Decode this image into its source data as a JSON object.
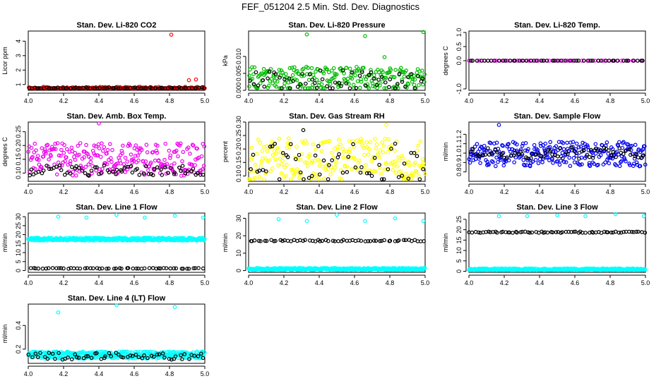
{
  "page_title": "FEF_051204  2.5 Min. Std. Dev. Diagnostics",
  "chart_data": [
    {
      "type": "scatter",
      "title": "Stan. Dev. Li-820 CO2",
      "ylabel": "Licor ppm",
      "xlabel": "",
      "xlim": [
        4.0,
        5.0
      ],
      "ylim": [
        0.6,
        4.7
      ],
      "xticks": [
        4.0,
        4.2,
        4.4,
        4.6,
        4.8,
        5.0
      ],
      "yticks": [
        1,
        2,
        3,
        4
      ],
      "ytick_labels": [
        "1",
        "2",
        "3",
        "4"
      ],
      "grid": false,
      "series": [
        {
          "color": "#ff0000",
          "base": 0.72,
          "spread": 0.12,
          "count": 220,
          "outliers": [
            {
              "x": 4.81,
              "y": 4.45
            },
            {
              "x": 4.91,
              "y": 1.3
            },
            {
              "x": 4.95,
              "y": 1.35
            }
          ]
        },
        {
          "color": "#000000",
          "base": 0.74,
          "spread": 0.08,
          "count": 75,
          "outliers": []
        }
      ]
    },
    {
      "type": "scatter",
      "title": "Stan. Dev. Li-820 Pressure",
      "ylabel": "kPa",
      "xlabel": "",
      "xlim": [
        4.0,
        5.0
      ],
      "ylim": [
        0.0,
        0.0175
      ],
      "xticks": [
        4.0,
        4.2,
        4.4,
        4.6,
        4.8,
        5.0
      ],
      "yticks": [
        0.0,
        0.005,
        0.01
      ],
      "ytick_labels": [
        "0.000",
        "0.005",
        "0.010"
      ],
      "grid": false,
      "series": [
        {
          "color": "#00bb00",
          "base": 0.0035,
          "spread": 0.0035,
          "count": 240,
          "outliers": [
            {
              "x": 4.33,
              "y": 0.0165
            },
            {
              "x": 4.66,
              "y": 0.016
            },
            {
              "x": 4.99,
              "y": 0.0172
            },
            {
              "x": 4.77,
              "y": 0.0098
            }
          ]
        },
        {
          "color": "#000000",
          "base": 0.003,
          "spread": 0.003,
          "count": 60,
          "outliers": []
        }
      ]
    },
    {
      "type": "scatter",
      "title": "Stan. Dev. Li-820 Temp.",
      "ylabel": "degrees C",
      "xlabel": "",
      "xlim": [
        4.0,
        5.0
      ],
      "ylim": [
        -1.05,
        1.05
      ],
      "xticks": [
        4.0,
        4.2,
        4.4,
        4.6,
        4.8,
        5.0
      ],
      "yticks": [
        -1.0,
        0.0,
        0.5,
        1.0
      ],
      "ytick_labels": [
        "-1.0",
        "0.0",
        "0.5",
        "1.0"
      ],
      "grid": false,
      "series": [
        {
          "color": "#ff00ff",
          "base": 0.0,
          "spread": 0.0,
          "count": 60,
          "outliers": []
        },
        {
          "color": "#000000",
          "base": 0.0,
          "spread": 0.0,
          "count": 50,
          "outliers": []
        }
      ]
    },
    {
      "type": "scatter",
      "title": "Stan. Dev. Amb. Box Temp.",
      "ylabel": "degrees C",
      "xlabel": "",
      "xlim": [
        4.0,
        5.0
      ],
      "ylim": [
        0.07,
        0.285
      ],
      "xticks": [
        4.0,
        4.2,
        4.4,
        4.6,
        4.8,
        5.0
      ],
      "yticks": [
        0.1,
        0.15,
        0.2,
        0.25
      ],
      "ytick_labels": [
        "0.10",
        "0.15",
        "0.20",
        "0.25"
      ],
      "grid": false,
      "series": [
        {
          "color": "#ee00ee",
          "base": 0.15,
          "spread": 0.06,
          "count": 260,
          "outliers": [
            {
              "x": 4.4,
              "y": 0.28
            }
          ]
        },
        {
          "color": "#000000",
          "base": 0.11,
          "spread": 0.02,
          "count": 70,
          "outliers": []
        }
      ]
    },
    {
      "type": "scatter",
      "title": "Stan. Dev. Gas Stream RH",
      "ylabel": "percent",
      "xlabel": "",
      "xlim": [
        4.0,
        5.0
      ],
      "ylim": [
        0.08,
        0.3
      ],
      "xticks": [
        4.0,
        4.2,
        4.4,
        4.6,
        4.8,
        5.0
      ],
      "yticks": [
        0.1,
        0.15,
        0.2,
        0.25,
        0.3
      ],
      "ytick_labels": [
        "0.10",
        "0.15",
        "0.20",
        "0.25",
        "0.30"
      ],
      "grid": false,
      "series": [
        {
          "color": "#ffff00",
          "base": 0.16,
          "spread": 0.08,
          "count": 240,
          "outliers": [
            {
              "x": 4.78,
              "y": 0.29
            }
          ]
        },
        {
          "color": "#000000",
          "base": 0.15,
          "spread": 0.07,
          "count": 55,
          "outliers": [
            {
              "x": 4.31,
              "y": 0.27
            }
          ]
        }
      ]
    },
    {
      "type": "scatter",
      "title": "Stan. Dev. Sample Flow",
      "ylabel": "ml/min",
      "xlabel": "",
      "xlim": [
        4.0,
        5.0
      ],
      "ylim": [
        0.7,
        1.33
      ],
      "xticks": [
        4.0,
        4.2,
        4.4,
        4.6,
        4.8,
        5.0
      ],
      "yticks": [
        0.8,
        0.9,
        1.0,
        1.1,
        1.2
      ],
      "ytick_labels": [
        "0.8",
        "0.9",
        "1.0",
        "1.1",
        "1.2"
      ],
      "grid": false,
      "series": [
        {
          "color": "#0000ee",
          "base": 0.99,
          "spread": 0.13,
          "count": 280,
          "outliers": [
            {
              "x": 4.17,
              "y": 1.3
            }
          ]
        },
        {
          "color": "#000000",
          "base": 1.0,
          "spread": 0.06,
          "count": 70,
          "outliers": []
        }
      ]
    },
    {
      "type": "scatter",
      "title": "Stan. Dev. Line 1 Flow",
      "ylabel": "ml/min",
      "xlabel": "",
      "xlim": [
        4.0,
        5.0
      ],
      "ylim": [
        -1,
        32
      ],
      "xticks": [
        4.0,
        4.2,
        4.4,
        4.6,
        4.8,
        5.0
      ],
      "yticks": [
        0,
        5,
        10,
        15,
        20,
        25,
        30
      ],
      "ytick_labels": [
        "0",
        "5",
        "10",
        "15",
        "20",
        "25",
        "30"
      ],
      "grid": false,
      "series": [
        {
          "color": "#00ffff",
          "base": 17.5,
          "spread": 0.8,
          "count": 400,
          "outliers": [
            {
              "x": 4.17,
              "y": 30
            },
            {
              "x": 4.33,
              "y": 29.5
            },
            {
              "x": 4.5,
              "y": 31
            },
            {
              "x": 4.66,
              "y": 29.5
            },
            {
              "x": 4.83,
              "y": 30.5
            },
            {
              "x": 4.99,
              "y": 29.5
            }
          ]
        },
        {
          "color": "#000000",
          "base": 1.2,
          "spread": 0.2,
          "count": 55,
          "outliers": []
        }
      ]
    },
    {
      "type": "scatter",
      "title": "Stan. Dev. Line 2 Flow",
      "ylabel": "ml/min",
      "xlabel": "",
      "xlim": [
        4.0,
        5.0
      ],
      "ylim": [
        -1,
        33
      ],
      "xticks": [
        4.0,
        4.2,
        4.4,
        4.6,
        4.8,
        5.0
      ],
      "yticks": [
        0,
        10,
        20,
        30
      ],
      "ytick_labels": [
        "0",
        "10",
        "20",
        "30"
      ],
      "grid": false,
      "series": [
        {
          "color": "#00ffff",
          "base": 0.9,
          "spread": 0.6,
          "count": 400,
          "outliers": [
            {
              "x": 4.17,
              "y": 29.5
            },
            {
              "x": 4.33,
              "y": 28.5
            },
            {
              "x": 4.5,
              "y": 32
            },
            {
              "x": 4.66,
              "y": 28.5
            },
            {
              "x": 4.83,
              "y": 30
            },
            {
              "x": 4.99,
              "y": 28.5
            }
          ]
        },
        {
          "color": "#000000",
          "base": 17.2,
          "spread": 0.4,
          "count": 60,
          "outliers": []
        }
      ]
    },
    {
      "type": "scatter",
      "title": "Stan. Dev. Line 3 Flow",
      "ylabel": "ml/min",
      "xlabel": "",
      "xlim": [
        4.0,
        5.0
      ],
      "ylim": [
        -0.5,
        28
      ],
      "xticks": [
        4.0,
        4.2,
        4.4,
        4.6,
        4.8,
        5.0
      ],
      "yticks": [
        0,
        5,
        10,
        15,
        20,
        25
      ],
      "ytick_labels": [
        "0",
        "5",
        "10",
        "15",
        "20",
        "25"
      ],
      "grid": false,
      "series": [
        {
          "color": "#00ffff",
          "base": 0.9,
          "spread": 0.5,
          "count": 400,
          "outliers": [
            {
              "x": 4.17,
              "y": 26.5
            },
            {
              "x": 4.33,
              "y": 26.5
            },
            {
              "x": 4.5,
              "y": 27
            },
            {
              "x": 4.66,
              "y": 26.5
            },
            {
              "x": 4.83,
              "y": 27.5
            },
            {
              "x": 4.99,
              "y": 26.5
            }
          ]
        },
        {
          "color": "#000000",
          "base": 18.8,
          "spread": 0.3,
          "count": 70,
          "outliers": []
        }
      ]
    },
    {
      "type": "scatter",
      "title": "Stan. Dev. Line 4 (LT) Flow",
      "ylabel": "ml/min",
      "xlabel": "",
      "xlim": [
        4.0,
        5.0
      ],
      "ylim": [
        0.08,
        0.58
      ],
      "xticks": [
        4.0,
        4.2,
        4.4,
        4.6,
        4.8,
        5.0
      ],
      "yticks": [
        0.2,
        0.4
      ],
      "ytick_labels": [
        "0.2",
        "0.4"
      ],
      "grid": false,
      "series": [
        {
          "color": "#00ffff",
          "base": 0.15,
          "spread": 0.03,
          "count": 380,
          "outliers": [
            {
              "x": 4.17,
              "y": 0.51
            },
            {
              "x": 4.5,
              "y": 0.57
            },
            {
              "x": 4.83,
              "y": 0.555
            }
          ]
        },
        {
          "color": "#000000",
          "base": 0.14,
          "spread": 0.03,
          "count": 60,
          "outliers": []
        }
      ]
    }
  ]
}
